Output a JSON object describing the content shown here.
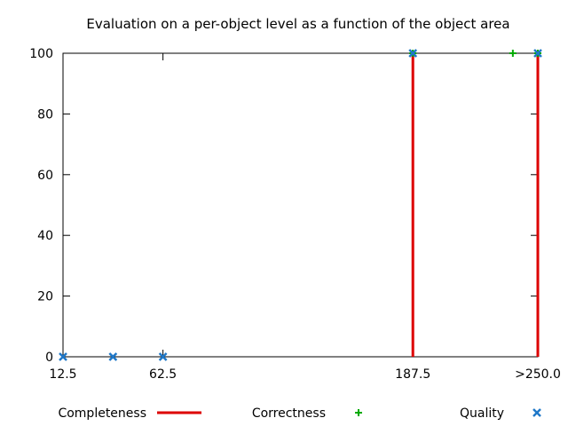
{
  "chart_data": {
    "type": "line",
    "title": "Evaluation on a per-object level as a function of the object area",
    "xlabel": "",
    "ylabel": "",
    "xlim": [
      12.5,
      250.0
    ],
    "ylim": [
      0,
      100
    ],
    "x_tick_values": [
      12.5,
      62.5,
      187.5,
      250.0
    ],
    "x_tick_labels": [
      "12.5",
      "62.5",
      "187.5",
      ">250.0"
    ],
    "y_ticks": [
      0,
      20,
      40,
      60,
      80,
      100
    ],
    "grid": false,
    "legend_position": "bottom",
    "series": [
      {
        "name": "Completeness",
        "style": "impulses",
        "color": "#dd0000",
        "points": [
          [
            12.5,
            0
          ],
          [
            37.5,
            0
          ],
          [
            62.5,
            0
          ],
          [
            187.5,
            100
          ],
          [
            250.0,
            100
          ]
        ]
      },
      {
        "name": "Correctness",
        "style": "points",
        "marker": "plus",
        "color": "#00aa00",
        "points": [
          [
            187.5,
            100
          ],
          [
            237.5,
            100
          ],
          [
            250.0,
            100
          ]
        ]
      },
      {
        "name": "Quality",
        "style": "points",
        "marker": "cross",
        "color": "#1f78c8",
        "points": [
          [
            12.5,
            0
          ],
          [
            37.5,
            0
          ],
          [
            62.5,
            0
          ],
          [
            187.5,
            100
          ],
          [
            250.0,
            100
          ]
        ]
      }
    ]
  }
}
